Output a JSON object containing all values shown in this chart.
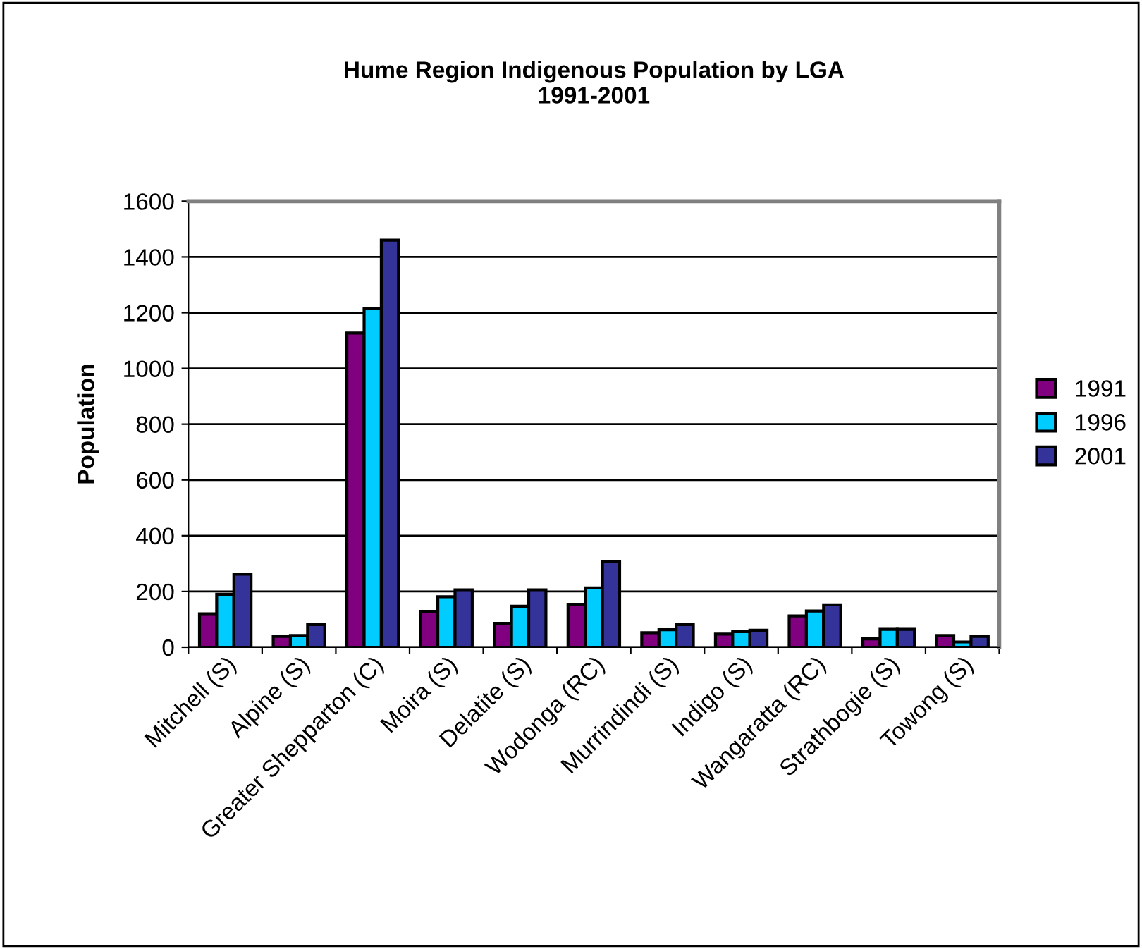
{
  "chart_data": {
    "type": "bar",
    "title": "Hume Region Indigenous Population by LGA\n1991-2001",
    "ylabel": "Population",
    "categories": [
      "Mitchell (S)",
      "Alpine (S)",
      "Greater Shepparton (C)",
      "Moira (S)",
      "Delatite (S)",
      "Wodonga (RC)",
      "Murrindindi (S)",
      "Indigo (S)",
      "Wangaratta (RC)",
      "Strathbogie (S)",
      "Towong (S)"
    ],
    "series": [
      {
        "name": "1991",
        "color": "#800080",
        "values": [
          120,
          39,
          1127,
          129,
          86,
          154,
          52,
          47,
          112,
          30,
          42
        ]
      },
      {
        "name": "1996",
        "color": "#00ccff",
        "values": [
          190,
          42,
          1215,
          181,
          147,
          213,
          63,
          56,
          130,
          64,
          19
        ]
      },
      {
        "name": "2001",
        "color": "#333399",
        "values": [
          262,
          81,
          1460,
          206,
          206,
          308,
          81,
          61,
          152,
          64,
          39
        ]
      }
    ],
    "ylim": [
      0,
      1600
    ],
    "yticks": [
      0,
      200,
      400,
      600,
      800,
      1000,
      1200,
      1400,
      1600
    ],
    "grid": "y",
    "legend": "right"
  }
}
